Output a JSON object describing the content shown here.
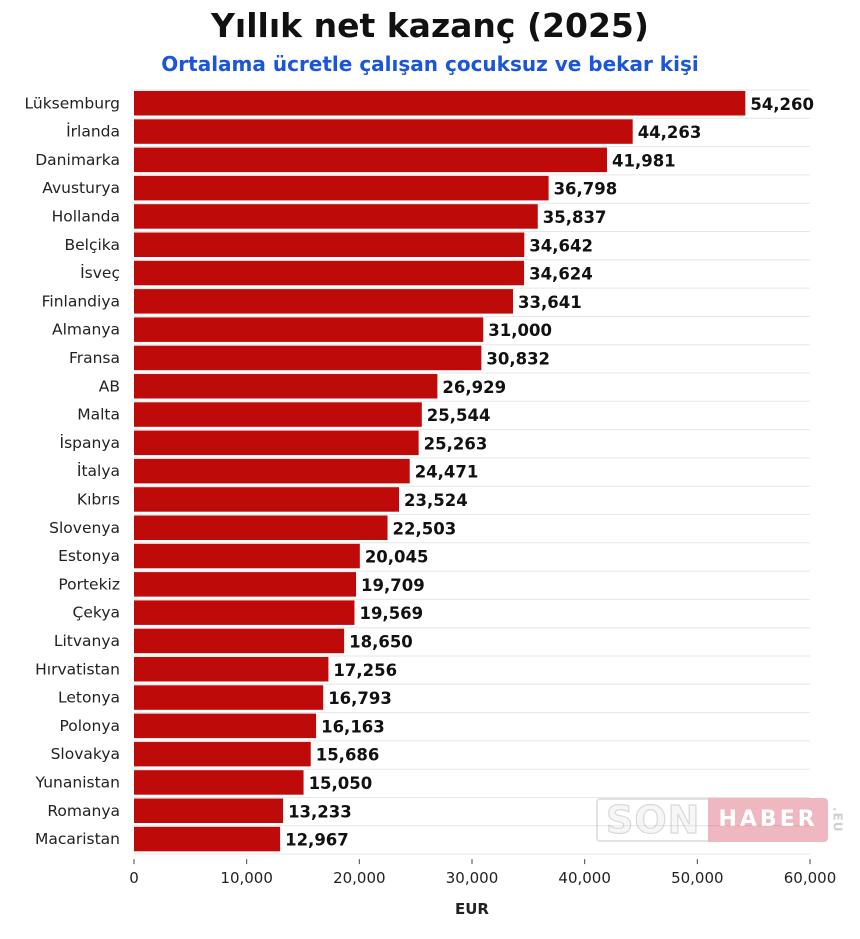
{
  "chart_data": {
    "type": "bar",
    "orientation": "horizontal",
    "title": "Yıllık net kazanç (2025)",
    "subtitle": "Ortalama ücretle çalışan çocuksuz ve bekar kişi",
    "xlabel": "EUR",
    "ylabel": "",
    "xlim": [
      0,
      60000
    ],
    "xticks": [
      0,
      10000,
      20000,
      30000,
      40000,
      50000,
      60000
    ],
    "xtick_labels": [
      "0",
      "10,000",
      "20,000",
      "30,000",
      "40,000",
      "50,000",
      "60,000"
    ],
    "grid": true,
    "bar_color": "#bf0a0a",
    "categories": [
      "Lüksemburg",
      "İrlanda",
      "Danimarka",
      "Avusturya",
      "Hollanda",
      "Belçika",
      "İsveç",
      "Finlandiya",
      "Almanya",
      "Fransa",
      "AB",
      "Malta",
      "İspanya",
      "İtalya",
      "Kıbrıs",
      "Slovenya",
      "Estonya",
      "Portekiz",
      "Çekya",
      "Litvanya",
      "Hırvatistan",
      "Letonya",
      "Polonya",
      "Slovakya",
      "Yunanistan",
      "Romanya",
      "Macaristan"
    ],
    "values": [
      54260,
      44263,
      41981,
      36798,
      35837,
      34642,
      34624,
      33641,
      31000,
      30832,
      26929,
      25544,
      25263,
      24471,
      23524,
      22503,
      20045,
      19709,
      19569,
      18650,
      17256,
      16793,
      16163,
      15686,
      15050,
      13233,
      12967
    ],
    "value_labels": [
      "54,260",
      "44,263",
      "41,981",
      "36,798",
      "35,837",
      "34,642",
      "34,624",
      "33,641",
      "31,000",
      "30,832",
      "26,929",
      "25,544",
      "25,263",
      "24,471",
      "23,524",
      "22,503",
      "20,045",
      "19,709",
      "19,569",
      "18,650",
      "17,256",
      "16,793",
      "16,163",
      "15,686",
      "15,050",
      "13,233",
      "12,967"
    ]
  },
  "watermark": {
    "part1": "SON",
    "part2": "HABER",
    "part3": ".EU"
  }
}
